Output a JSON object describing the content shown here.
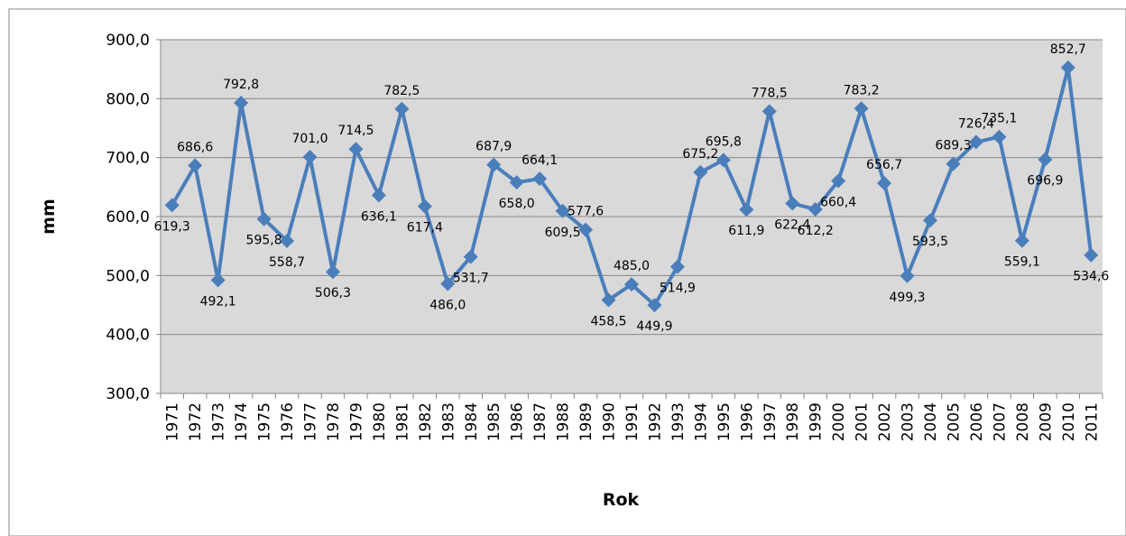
{
  "chart_data": {
    "type": "line",
    "x_label": "Rok",
    "y_label": "mm",
    "categories": [
      "1971",
      "1972",
      "1973",
      "1974",
      "1975",
      "1976",
      "1977",
      "1978",
      "1979",
      "1980",
      "1981",
      "1982",
      "1983",
      "1984",
      "1985",
      "1986",
      "1987",
      "1988",
      "1989",
      "1990",
      "1991",
      "1992",
      "1993",
      "1994",
      "1995",
      "1996",
      "1997",
      "1998",
      "1999",
      "2000",
      "2001",
      "2002",
      "2003",
      "2004",
      "2005",
      "2006",
      "2007",
      "2008",
      "2009",
      "2010",
      "2011"
    ],
    "values": [
      619.3,
      686.6,
      492.1,
      792.8,
      595.8,
      558.7,
      701.0,
      506.3,
      714.5,
      636.1,
      782.5,
      617.4,
      486.0,
      531.7,
      687.9,
      658.0,
      664.1,
      609.5,
      577.6,
      458.5,
      485.0,
      449.9,
      514.9,
      675.2,
      695.8,
      611.9,
      778.5,
      622.4,
      612.2,
      660.4,
      783.2,
      656.7,
      499.3,
      593.5,
      689.3,
      726.4,
      735.1,
      559.1,
      696.9,
      852.7,
      534.6
    ],
    "value_labels": [
      "619,3",
      "686,6",
      "492,1",
      "792,8",
      "595,8",
      "558,7",
      "701,0",
      "506,3",
      "714,5",
      "636,1",
      "782,5",
      "617,4",
      "486,0",
      "531,7",
      "687,9",
      "658,0",
      "664,1",
      "609,5",
      "577,6",
      "458,5",
      "485,0",
      "449,9",
      "514,9",
      "675,2",
      "695,8",
      "611,9",
      "778,5",
      "622,4",
      "612,2",
      "660,4",
      "783,2",
      "656,7",
      "499,3",
      "593,5",
      "689,3",
      "726,4",
      "735,1",
      "559,1",
      "696,9",
      "852,7",
      "534,6"
    ],
    "color": "#4a7ebb",
    "ylim": [
      300,
      900
    ],
    "yticks": [
      {
        "value": 300,
        "label": "300,0"
      },
      {
        "value": 400,
        "label": "400,0"
      },
      {
        "value": 500,
        "label": "500,0"
      },
      {
        "value": 600,
        "label": "600,0"
      },
      {
        "value": 700,
        "label": "700,0"
      },
      {
        "value": 800,
        "label": "800,0"
      },
      {
        "value": 900,
        "label": "900,0"
      }
    ],
    "grid": true
  }
}
